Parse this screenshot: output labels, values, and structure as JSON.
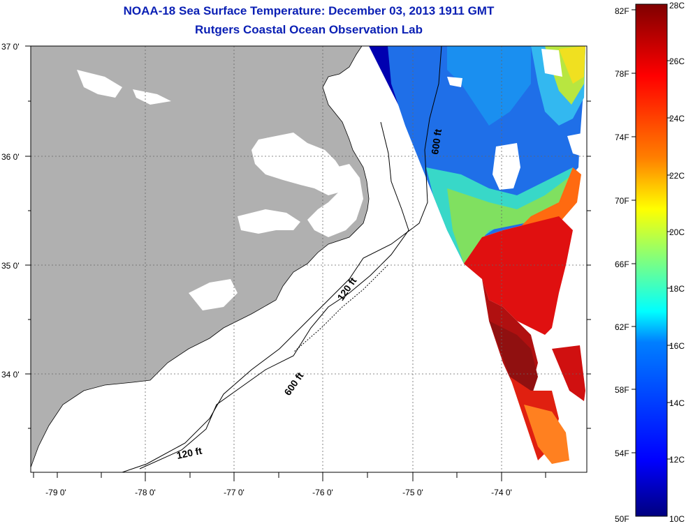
{
  "title": "NOAA-18 Sea Surface Temperature:  December 03, 2013 1911 GMT",
  "subtitle": "Rutgers Coastal Ocean Observation Lab",
  "colors": {
    "land": "#b0b0b0",
    "title": "#0a1fb4",
    "gradient": [
      "#00007f",
      "#0000ff",
      "#007fff",
      "#00ffff",
      "#7fff7f",
      "#ffff00",
      "#ff7f00",
      "#ff0000",
      "#7f0000"
    ]
  },
  "map": {
    "lat_labels": [
      "37 0'",
      "36 0'",
      "35 0'",
      "34 0'"
    ],
    "lon_labels": [
      "-79 0'",
      "-78 0'",
      "-77 0'",
      "-76 0'",
      "-75 0'",
      "-74 0'"
    ],
    "contours": [
      "600 ft",
      "120 ft",
      "600 ft",
      "120 ft"
    ]
  },
  "colorbar": {
    "fahrenheit": [
      "82F",
      "78F",
      "74F",
      "70F",
      "66F",
      "62F",
      "58F",
      "54F",
      "50F"
    ],
    "celsius": [
      "28C",
      "26C",
      "24C",
      "22C",
      "20C",
      "18C",
      "16C",
      "14C",
      "12C",
      "10C"
    ]
  }
}
